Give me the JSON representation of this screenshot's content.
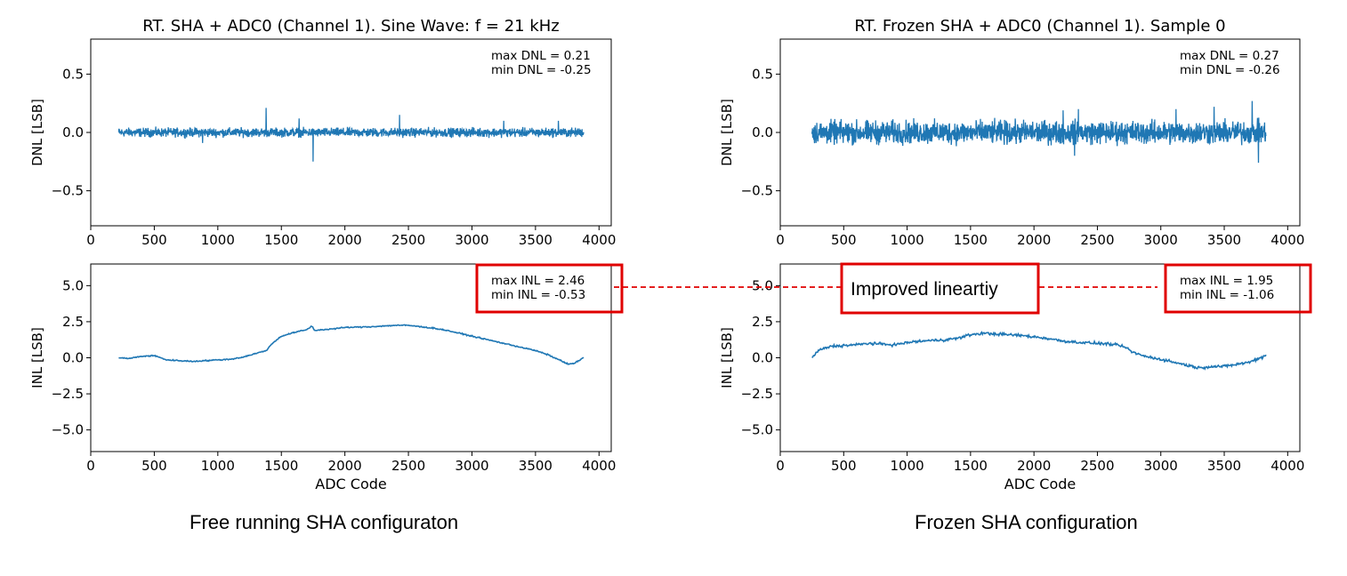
{
  "captions": {
    "left": "Free running SHA configuraton",
    "right": "Frozen SHA configuration"
  },
  "highlight": {
    "label": "Improved lineartiy",
    "color": "#e00000"
  },
  "series_color": "#1f77b4",
  "chart_data": [
    {
      "id": "dnl-free",
      "type": "line",
      "title": "RT. SHA + ADC0 (Channel 1). Sine Wave: f = 21 kHz",
      "xlabel": "",
      "ylabel": "DNL [LSB]",
      "xlim": [
        0,
        4096
      ],
      "ylim": [
        -0.8,
        0.8
      ],
      "xticks": [
        0,
        500,
        1000,
        1500,
        2000,
        2500,
        3000,
        3500,
        4000
      ],
      "yticks": [
        -0.5,
        0.0,
        0.5
      ],
      "ytick_labels": [
        "−0.5",
        "0.0",
        "0.5"
      ],
      "annotation": [
        "max DNL = 0.21",
        "min DNL = -0.25"
      ],
      "annotation_boxed": false,
      "series": [
        {
          "kind": "noise",
          "x_start": 220,
          "x_end": 3880,
          "amplitude": 0.035,
          "spikes": [
            [
              1380,
              0.21
            ],
            [
              1750,
              -0.25
            ],
            [
              1640,
              0.12
            ],
            [
              2430,
              0.15
            ],
            [
              3250,
              0.1
            ],
            [
              3680,
              0.1
            ],
            [
              880,
              -0.09
            ]
          ]
        }
      ]
    },
    {
      "id": "dnl-frozen",
      "type": "line",
      "title": "RT. Frozen SHA + ADC0 (Channel 1). Sample 0",
      "xlabel": "",
      "ylabel": "DNL [LSB]",
      "xlim": [
        0,
        4096
      ],
      "ylim": [
        -0.8,
        0.8
      ],
      "xticks": [
        0,
        500,
        1000,
        1500,
        2000,
        2500,
        3000,
        3500,
        4000
      ],
      "yticks": [
        -0.5,
        0.0,
        0.5
      ],
      "ytick_labels": [
        "−0.5",
        "0.0",
        "0.5"
      ],
      "annotation": [
        "max DNL = 0.27",
        "min DNL = -0.26"
      ],
      "annotation_boxed": false,
      "series": [
        {
          "kind": "noise",
          "x_start": 250,
          "x_end": 3830,
          "amplitude": 0.09,
          "spikes": [
            [
              3720,
              0.27
            ],
            [
              3770,
              -0.26
            ],
            [
              2350,
              0.2
            ],
            [
              2320,
              -0.2
            ],
            [
              3420,
              0.22
            ],
            [
              3120,
              0.2
            ],
            [
              2230,
              0.19
            ]
          ]
        }
      ]
    },
    {
      "id": "inl-free",
      "type": "line",
      "title": "",
      "xlabel": "ADC Code",
      "ylabel": "INL [LSB]",
      "xlim": [
        0,
        4096
      ],
      "ylim": [
        -6.5,
        6.5
      ],
      "xticks": [
        0,
        500,
        1000,
        1500,
        2000,
        2500,
        3000,
        3500,
        4000
      ],
      "yticks": [
        -5.0,
        -2.5,
        0.0,
        2.5,
        5.0
      ],
      "ytick_labels": [
        "−5.0",
        "−2.5",
        "0.0",
        "2.5",
        "5.0"
      ],
      "annotation": [
        "max INL = 2.46",
        "min INL = -0.53"
      ],
      "annotation_boxed": true,
      "series": [
        {
          "kind": "curve",
          "noise": 0.06,
          "points": [
            [
              220,
              0.0
            ],
            [
              300,
              -0.05
            ],
            [
              400,
              0.1
            ],
            [
              500,
              0.15
            ],
            [
              600,
              -0.15
            ],
            [
              700,
              -0.2
            ],
            [
              800,
              -0.25
            ],
            [
              900,
              -0.2
            ],
            [
              1000,
              -0.15
            ],
            [
              1100,
              -0.1
            ],
            [
              1200,
              0.05
            ],
            [
              1300,
              0.3
            ],
            [
              1380,
              0.5
            ],
            [
              1430,
              1.0
            ],
            [
              1500,
              1.5
            ],
            [
              1600,
              1.75
            ],
            [
              1700,
              1.95
            ],
            [
              1740,
              2.2
            ],
            [
              1760,
              1.9
            ],
            [
              1900,
              2.0
            ],
            [
              2000,
              2.1
            ],
            [
              2200,
              2.15
            ],
            [
              2300,
              2.2
            ],
            [
              2400,
              2.25
            ],
            [
              2500,
              2.25
            ],
            [
              2600,
              2.15
            ],
            [
              2700,
              2.05
            ],
            [
              2800,
              1.9
            ],
            [
              2900,
              1.7
            ],
            [
              3000,
              1.5
            ],
            [
              3100,
              1.3
            ],
            [
              3200,
              1.1
            ],
            [
              3300,
              0.9
            ],
            [
              3400,
              0.7
            ],
            [
              3500,
              0.5
            ],
            [
              3600,
              0.2
            ],
            [
              3700,
              -0.2
            ],
            [
              3760,
              -0.45
            ],
            [
              3800,
              -0.4
            ],
            [
              3880,
              0.0
            ]
          ]
        }
      ]
    },
    {
      "id": "inl-frozen",
      "type": "line",
      "title": "",
      "xlabel": "ADC Code",
      "ylabel": "INL [LSB]",
      "xlim": [
        0,
        4096
      ],
      "ylim": [
        -6.5,
        6.5
      ],
      "xticks": [
        0,
        500,
        1000,
        1500,
        2000,
        2500,
        3000,
        3500,
        4000
      ],
      "yticks": [
        -5.0,
        -2.5,
        0.0,
        2.5,
        5.0
      ],
      "ytick_labels": [
        "−5.0",
        "−2.5",
        "0.0",
        "2.5",
        "5.0"
      ],
      "annotation": [
        "max INL = 1.95",
        "min INL = -1.06"
      ],
      "annotation_boxed": true,
      "series": [
        {
          "kind": "curve",
          "noise": 0.14,
          "points": [
            [
              250,
              0.0
            ],
            [
              300,
              0.5
            ],
            [
              400,
              0.8
            ],
            [
              500,
              0.85
            ],
            [
              600,
              0.9
            ],
            [
              700,
              1.0
            ],
            [
              800,
              0.95
            ],
            [
              900,
              0.9
            ],
            [
              1000,
              1.05
            ],
            [
              1100,
              1.15
            ],
            [
              1200,
              1.2
            ],
            [
              1300,
              1.25
            ],
            [
              1400,
              1.35
            ],
            [
              1500,
              1.6
            ],
            [
              1600,
              1.7
            ],
            [
              1700,
              1.65
            ],
            [
              1800,
              1.6
            ],
            [
              1900,
              1.55
            ],
            [
              2000,
              1.45
            ],
            [
              2100,
              1.35
            ],
            [
              2200,
              1.2
            ],
            [
              2300,
              1.1
            ],
            [
              2400,
              1.05
            ],
            [
              2500,
              1.0
            ],
            [
              2600,
              0.95
            ],
            [
              2700,
              0.8
            ],
            [
              2800,
              0.3
            ],
            [
              2900,
              0.05
            ],
            [
              3000,
              -0.1
            ],
            [
              3100,
              -0.3
            ],
            [
              3200,
              -0.5
            ],
            [
              3300,
              -0.7
            ],
            [
              3400,
              -0.6
            ],
            [
              3500,
              -0.6
            ],
            [
              3600,
              -0.45
            ],
            [
              3700,
              -0.3
            ],
            [
              3800,
              0.05
            ],
            [
              3830,
              0.2
            ]
          ]
        }
      ]
    }
  ]
}
